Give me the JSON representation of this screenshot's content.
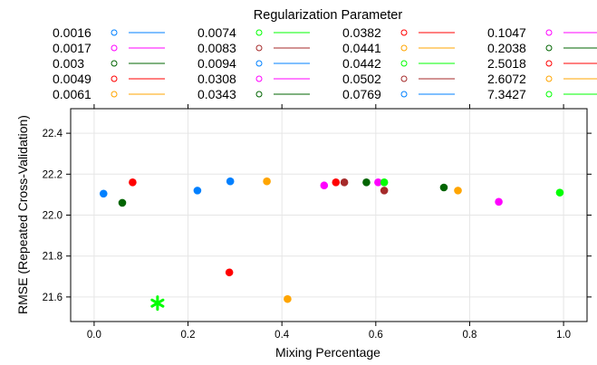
{
  "chart_data": {
    "type": "scatter",
    "title": "",
    "xlabel": "Mixing Percentage",
    "ylabel": "RMSE (Repeated Cross-Validation)",
    "xlim": [
      -0.05,
      1.05
    ],
    "ylim": [
      21.48,
      22.52
    ],
    "xticks": [
      0.0,
      0.2,
      0.4,
      0.6,
      0.8,
      1.0
    ],
    "xtick_labels": [
      "0.0",
      "0.2",
      "0.4",
      "0.6",
      "0.8",
      "1.0"
    ],
    "yticks": [
      21.6,
      21.8,
      22.0,
      22.2,
      22.4
    ],
    "ytick_labels": [
      "21.6",
      "21.8",
      "22.0",
      "22.2",
      "22.4"
    ],
    "grid": true,
    "legend_title": "Regularization Parameter",
    "legend_placement": "top",
    "legend_columns": 4,
    "series": [
      {
        "name": "0.0016",
        "color": "#0080ff",
        "points": [
          [
            0.02,
            22.105
          ]
        ]
      },
      {
        "name": "0.0017",
        "color": "#ff00ff",
        "points": [
          [
            0.49,
            22.145
          ]
        ]
      },
      {
        "name": "0.003",
        "color": "#006400",
        "points": [
          [
            0.06,
            22.06
          ]
        ]
      },
      {
        "name": "0.0049",
        "color": "#ff0000",
        "points": [
          [
            0.515,
            22.16
          ]
        ]
      },
      {
        "name": "0.0061",
        "color": "#ffa500",
        "points": [
          [
            0.412,
            21.59
          ]
        ]
      },
      {
        "name": "0.0074",
        "color": "#00ff00",
        "points": [
          [
            0.135,
            21.57
          ]
        ],
        "best": true
      },
      {
        "name": "0.0083",
        "color": "#a52a2a",
        "points": [
          [
            0.533,
            22.16
          ]
        ]
      },
      {
        "name": "0.0094",
        "color": "#0080ff",
        "points": [
          [
            0.22,
            22.12
          ]
        ]
      },
      {
        "name": "0.0308",
        "color": "#ff00ff",
        "points": [
          [
            0.605,
            22.16
          ]
        ]
      },
      {
        "name": "0.0343",
        "color": "#006400",
        "points": [
          [
            0.58,
            22.16
          ]
        ]
      },
      {
        "name": "0.0382",
        "color": "#ff0000",
        "points": [
          [
            0.288,
            21.72
          ]
        ]
      },
      {
        "name": "0.0441",
        "color": "#ffa500",
        "points": [
          [
            0.775,
            22.12
          ]
        ]
      },
      {
        "name": "0.0442",
        "color": "#00ff00",
        "points": [
          [
            0.618,
            22.16
          ]
        ]
      },
      {
        "name": "0.0502",
        "color": "#a52a2a",
        "points": [
          [
            0.618,
            22.12
          ]
        ]
      },
      {
        "name": "0.0769",
        "color": "#0080ff",
        "points": [
          [
            0.29,
            22.165
          ]
        ]
      },
      {
        "name": "0.1047",
        "color": "#ff00ff",
        "points": [
          [
            0.862,
            22.065
          ]
        ]
      },
      {
        "name": "0.2038",
        "color": "#006400",
        "points": [
          [
            0.745,
            22.135
          ]
        ]
      },
      {
        "name": "2.5018",
        "color": "#ff0000",
        "points": [
          [
            0.082,
            22.16
          ]
        ]
      },
      {
        "name": "2.6072",
        "color": "#ffa500",
        "points": [
          [
            0.368,
            22.165
          ]
        ]
      },
      {
        "name": "7.3427",
        "color": "#00ff00",
        "points": [
          [
            0.992,
            22.11
          ]
        ]
      }
    ]
  }
}
